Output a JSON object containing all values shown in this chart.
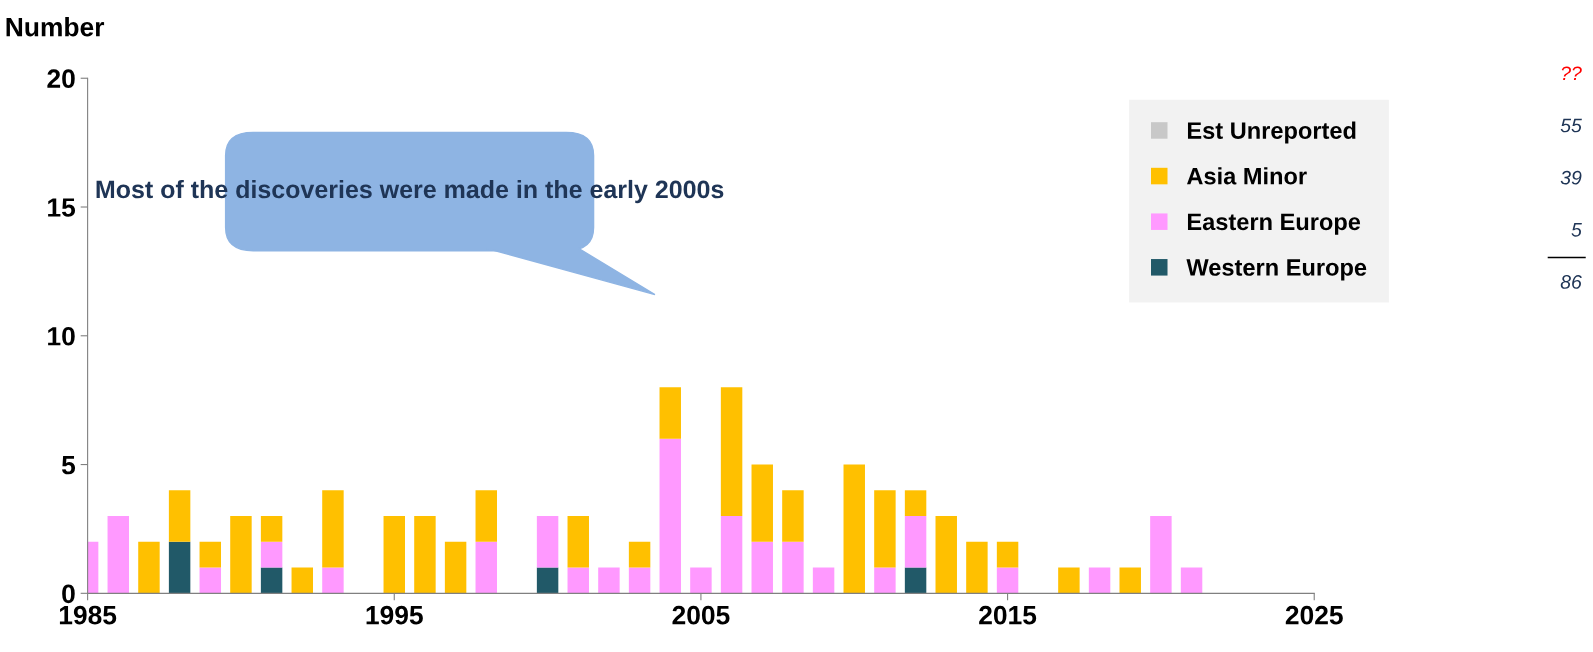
{
  "chart_data": {
    "type": "bar",
    "stacked": true,
    "ylabel": "Number",
    "x": [
      1985,
      1986,
      1987,
      1988,
      1989,
      1990,
      1991,
      1992,
      1993,
      1994,
      1995,
      1996,
      1997,
      1998,
      1999,
      2000,
      2001,
      2002,
      2003,
      2004,
      2005,
      2006,
      2007,
      2008,
      2009,
      2010,
      2011,
      2012,
      2013,
      2014,
      2015,
      2016,
      2017,
      2018,
      2019,
      2020,
      2021
    ],
    "series": [
      {
        "name": "Western Europe",
        "color": "#215968",
        "values": [
          null,
          null,
          null,
          2,
          null,
          null,
          1,
          null,
          null,
          null,
          null,
          null,
          null,
          null,
          null,
          1,
          null,
          null,
          null,
          null,
          null,
          null,
          null,
          null,
          null,
          null,
          null,
          1,
          null,
          null,
          null,
          null,
          null,
          null,
          null,
          null,
          null
        ]
      },
      {
        "name": "Eastern Europe",
        "color": "#ff99ff",
        "values": [
          2,
          3,
          null,
          null,
          1,
          null,
          1,
          null,
          1,
          null,
          null,
          null,
          null,
          2,
          null,
          2,
          1,
          1,
          1,
          6,
          1,
          3,
          2,
          2,
          1,
          null,
          1,
          2,
          null,
          null,
          1,
          null,
          null,
          1,
          null,
          3,
          1
        ]
      },
      {
        "name": "Asia Minor",
        "color": "#ffc000",
        "values": [
          null,
          null,
          2,
          2,
          1,
          3,
          1,
          1,
          3,
          null,
          3,
          3,
          2,
          2,
          null,
          null,
          2,
          null,
          1,
          2,
          null,
          5,
          3,
          2,
          null,
          5,
          3,
          1,
          3,
          2,
          1,
          null,
          1,
          null,
          1,
          null,
          null
        ]
      },
      {
        "name": "Est Unreported",
        "color": "#c8c8c8",
        "values": [
          null,
          null,
          null,
          null,
          null,
          null,
          null,
          null,
          null,
          null,
          null,
          null,
          null,
          null,
          null,
          null,
          null,
          null,
          null,
          null,
          null,
          null,
          null,
          null,
          null,
          null,
          null,
          null,
          null,
          null,
          null,
          null,
          null,
          null,
          null,
          null,
          null
        ]
      }
    ],
    "xlim": [
      1985,
      2025
    ],
    "xticks": [
      1985,
      1995,
      2005,
      2015,
      2025
    ],
    "ylim": [
      0,
      20
    ],
    "yticks": [
      0,
      5,
      10,
      15,
      20
    ],
    "grid": false,
    "legend": "top right",
    "annotations": [
      "Most of the discoveries were made in the early 2000s",
      "??",
      "55",
      "39",
      "5",
      "86"
    ]
  }
}
